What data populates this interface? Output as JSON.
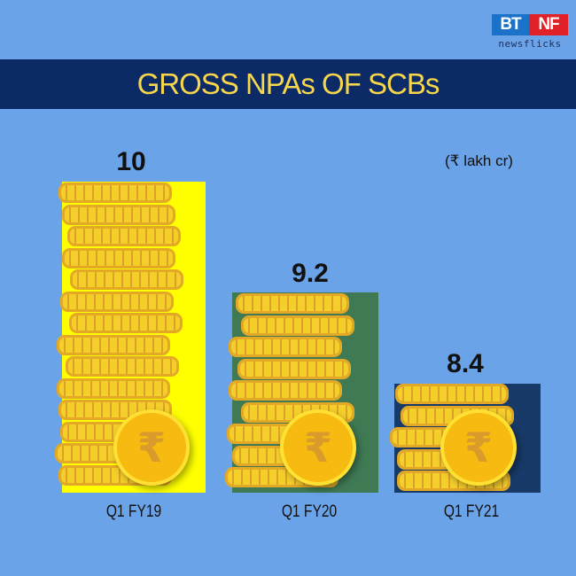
{
  "logo": {
    "left": "BT",
    "right": "NF",
    "sub": "newsflicks"
  },
  "title": "GROSS NPAs OF SCBs",
  "unit_label": "(₹ lakh cr)",
  "icon_glyph": "₹",
  "chart_data": {
    "type": "bar",
    "title": "GROSS NPAs OF SCBs",
    "xlabel": "",
    "ylabel": "₹ lakh cr",
    "categories": [
      "Q1 FY19",
      "Q1 FY20",
      "Q1 FY21"
    ],
    "values": [
      10,
      9.2,
      8.4
    ],
    "value_labels": [
      "10",
      "9.2",
      "8.4"
    ],
    "bar_colors": [
      "#ffff00",
      "#3f7a55",
      "#173a68"
    ],
    "grid": false,
    "legend": null
  },
  "colors": {
    "background": "#6aa3e8",
    "banner": "#0c2a66",
    "title_text": "#f6d64a"
  }
}
